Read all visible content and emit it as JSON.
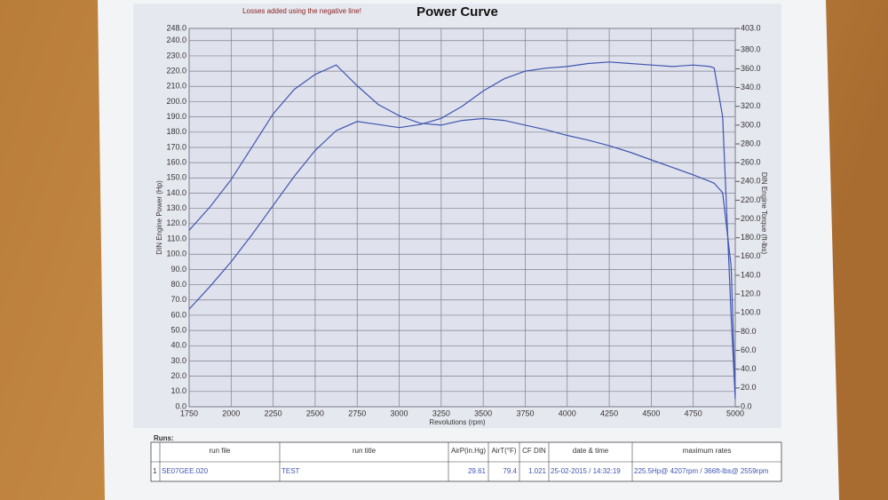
{
  "chart_data": {
    "type": "line",
    "title": "Power Curve",
    "note": "Losses added using the negative line!",
    "xlabel": "Revolutions (rpm)",
    "ylabel": "DIN Engine Power (Hp)",
    "y2label": "DIN Engine Torque (ft-lbs)",
    "x": [
      1750,
      1875,
      2000,
      2125,
      2250,
      2375,
      2500,
      2625,
      2750,
      2875,
      3000,
      3125,
      3250,
      3375,
      3500,
      3625,
      3750,
      3875,
      4000,
      4125,
      4250,
      4375,
      4500,
      4625,
      4750,
      4850,
      4875,
      4925,
      4975,
      5000
    ],
    "series": [
      {
        "name": "Power",
        "color": "#3f55b0",
        "values": [
          64,
          79,
          95,
          113,
          132,
          151,
          168,
          181,
          187,
          185,
          183,
          185,
          189,
          197,
          207,
          215,
          220,
          222,
          223,
          225,
          226,
          225,
          224,
          223,
          224,
          223,
          222,
          190,
          60,
          5
        ]
      },
      {
        "name": "Torque",
        "color": "#3f55b0",
        "axis": "y2",
        "values": [
          188,
          213,
          242,
          277,
          312,
          338,
          354,
          364,
          342,
          322,
          310,
          302,
          300,
          305,
          307,
          305,
          300,
          295,
          289,
          284,
          278,
          271,
          263,
          255,
          247,
          240,
          238,
          228,
          150,
          13
        ]
      }
    ],
    "xlim": [
      1750,
      5000
    ],
    "xticks": [
      1750,
      2000,
      2250,
      2500,
      2750,
      3000,
      3250,
      3500,
      3750,
      4000,
      4250,
      4500,
      4750,
      5000
    ],
    "ylim": [
      0,
      248
    ],
    "yticks": [
      {
        "value": 0,
        "label": "0.0"
      },
      {
        "value": 10,
        "label": "10.0"
      },
      {
        "value": 20,
        "label": "20.0"
      },
      {
        "value": 30,
        "label": "30.0"
      },
      {
        "value": 40,
        "label": "40.0"
      },
      {
        "value": 50,
        "label": "50.0"
      },
      {
        "value": 60,
        "label": "60.0"
      },
      {
        "value": 70,
        "label": "70.0"
      },
      {
        "value": 80,
        "label": "80.0"
      },
      {
        "value": 90,
        "label": "90.0"
      },
      {
        "value": 100,
        "label": "100.0"
      },
      {
        "value": 110,
        "label": "110.0"
      },
      {
        "value": 120,
        "label": "120.0"
      },
      {
        "value": 130,
        "label": "130.0"
      },
      {
        "value": 140,
        "label": "140.0"
      },
      {
        "value": 150,
        "label": "150.0"
      },
      {
        "value": 160,
        "label": "160.0"
      },
      {
        "value": 170,
        "label": "170.0"
      },
      {
        "value": 180,
        "label": "180.0"
      },
      {
        "value": 190,
        "label": "190.0"
      },
      {
        "value": 200,
        "label": "200.0"
      },
      {
        "value": 210,
        "label": "210.0"
      },
      {
        "value": 220,
        "label": "220.0"
      },
      {
        "value": 230,
        "label": "230.0"
      },
      {
        "value": 240,
        "label": "240.0"
      },
      {
        "value": 248,
        "label": "248.0"
      }
    ],
    "y2lim": [
      0,
      403
    ],
    "y2ticks": [
      {
        "value": 0,
        "label": "0.0"
      },
      {
        "value": 20,
        "label": "20.0"
      },
      {
        "value": 40,
        "label": "40.0"
      },
      {
        "value": 60,
        "label": "60.0"
      },
      {
        "value": 80,
        "label": "80.0"
      },
      {
        "value": 100,
        "label": "100.0"
      },
      {
        "value": 120,
        "label": "120.0"
      },
      {
        "value": 140,
        "label": "140.0"
      },
      {
        "value": 160,
        "label": "160.0"
      },
      {
        "value": 180,
        "label": "180.0"
      },
      {
        "value": 200,
        "label": "200.0"
      },
      {
        "value": 220,
        "label": "220.0"
      },
      {
        "value": 240,
        "label": "240.0"
      },
      {
        "value": 260,
        "label": "260.0"
      },
      {
        "value": 280,
        "label": "280.0"
      },
      {
        "value": 300,
        "label": "300.0"
      },
      {
        "value": 320,
        "label": "320.0"
      },
      {
        "value": 340,
        "label": "340.0"
      },
      {
        "value": 360,
        "label": "360.0"
      },
      {
        "value": 380,
        "label": "380.0"
      },
      {
        "value": 403,
        "label": "403.0"
      }
    ],
    "grid": true
  },
  "runs": {
    "title": "Runs:",
    "headers": [
      "run file",
      "run title",
      "AirP(in.Hg)",
      "AirT(°F)",
      "CF DIN",
      "date & time",
      "maximum rates"
    ],
    "rows": [
      [
        "1",
        "SE07GEE.020",
        "TEST",
        "29.61",
        "79.4",
        "1.021",
        "25-02-2015 / 14:32:19",
        "225.5Hp@ 4207rpm / 366ft-lbs@ 2559rpm"
      ]
    ]
  }
}
